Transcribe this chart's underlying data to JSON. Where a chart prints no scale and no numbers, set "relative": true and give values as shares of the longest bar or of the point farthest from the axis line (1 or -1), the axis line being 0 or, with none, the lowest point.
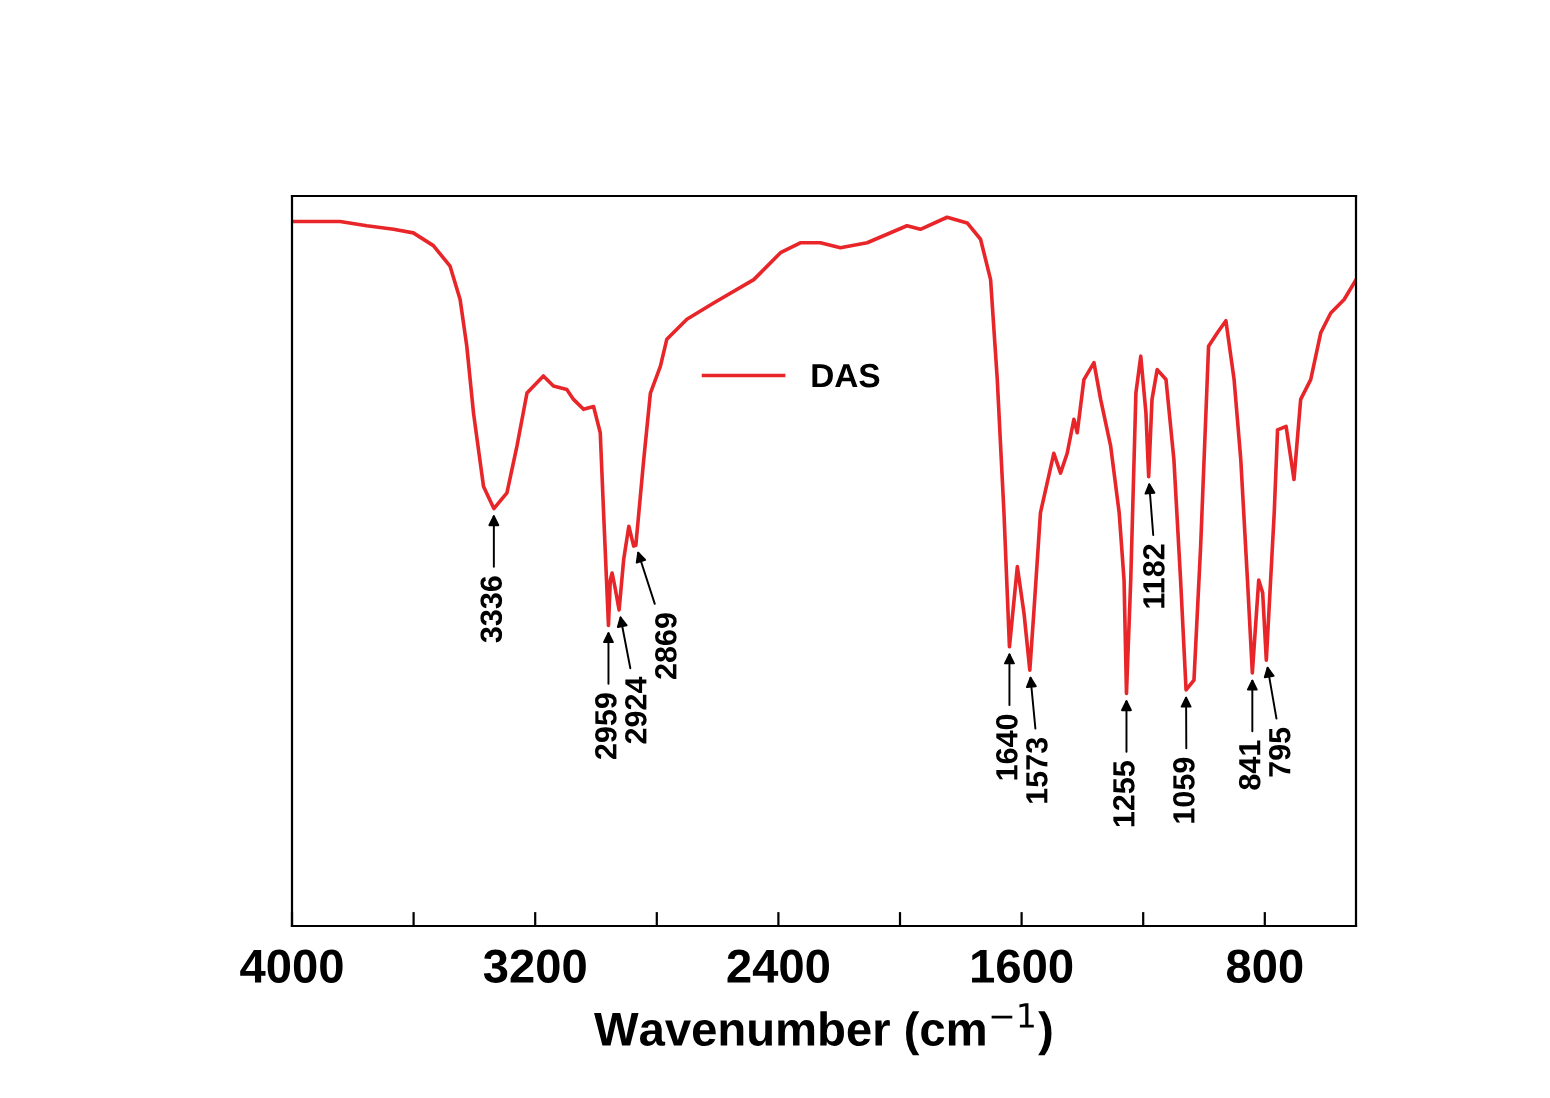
{
  "chart_data": {
    "type": "line",
    "relative": true,
    "xlabel": "Wavenumber (cm$^{−1}$)",
    "xlim": [
      4000,
      500
    ],
    "xticks": [
      4000,
      {
        "value": 3600,
        "label": null
      },
      3200,
      {
        "value": 2800,
        "label": null
      },
      2400,
      {
        "value": 2000,
        "label": null
      },
      1600,
      {
        "value": 1200,
        "label": null
      },
      800
    ],
    "tick_labels": "x",
    "grid": false,
    "legend": "top",
    "marker": "none",
    "line_style": "solid",
    "series": [
      {
        "name": "DAS",
        "color": "#e8262a",
        "x": [
          4000,
          3842,
          3754,
          3666,
          3601,
          3535,
          3480,
          3447,
          3425,
          3403,
          3370,
          3336,
          3293,
          3260,
          3227,
          3173,
          3140,
          3096,
          3074,
          3041,
          3008,
          2986,
          2975,
          2959,
          2953,
          2947,
          2938,
          2924,
          2909,
          2892,
          2876,
          2869,
          2843,
          2821,
          2788,
          2767,
          2701,
          2613,
          2481,
          2393,
          2328,
          2262,
          2196,
          2108,
          1977,
          1933,
          1845,
          1779,
          1735,
          1702,
          1680,
          1658,
          1640,
          1614,
          1592,
          1573,
          1560,
          1538,
          1494,
          1472,
          1450,
          1428,
          1417,
          1395,
          1362,
          1340,
          1307,
          1279,
          1263,
          1255,
          1241,
          1224,
          1208,
          1191,
          1182,
          1171,
          1154,
          1125,
          1099,
          1077,
          1059,
          1033,
          1011,
          985,
          956,
          928,
          901,
          879,
          857,
          841,
          820,
          807,
          795,
          769,
          758,
          730,
          704,
          682,
          649,
          616,
          583,
          539,
          500
        ],
        "values": [
          0.994,
          0.994,
          0.988,
          0.983,
          0.978,
          0.96,
          0.931,
          0.884,
          0.818,
          0.724,
          0.62,
          0.589,
          0.611,
          0.677,
          0.752,
          0.776,
          0.762,
          0.757,
          0.743,
          0.729,
          0.733,
          0.696,
          0.583,
          0.424,
          0.488,
          0.498,
          0.479,
          0.446,
          0.517,
          0.564,
          0.536,
          0.537,
          0.658,
          0.752,
          0.79,
          0.828,
          0.856,
          0.879,
          0.912,
          0.95,
          0.964,
          0.964,
          0.957,
          0.964,
          0.988,
          0.983,
          1,
          0.992,
          0.969,
          0.912,
          0.771,
          0.583,
          0.394,
          0.507,
          0.441,
          0.361,
          0.441,
          0.583,
          0.667,
          0.639,
          0.667,
          0.715,
          0.696,
          0.771,
          0.795,
          0.743,
          0.677,
          0.583,
          0.488,
          0.328,
          0.488,
          0.752,
          0.804,
          0.724,
          0.634,
          0.743,
          0.785,
          0.771,
          0.658,
          0.488,
          0.333,
          0.347,
          0.536,
          0.818,
          0.837,
          0.854,
          0.771,
          0.658,
          0.488,
          0.357,
          0.488,
          0.47,
          0.375,
          0.583,
          0.7,
          0.705,
          0.63,
          0.743,
          0.771,
          0.837,
          0.865,
          0.884,
          0.912
        ]
      }
    ],
    "annotations": [
      {
        "text": "3336",
        "x": 3336,
        "y": 0.589
      },
      {
        "text": "2959",
        "x": 2959,
        "y": 0.424
      },
      {
        "text": "2924",
        "x": 2924,
        "y": 0.446
      },
      {
        "text": "2869",
        "x": 2869,
        "y": 0.537
      },
      {
        "text": "1640",
        "x": 1640,
        "y": 0.394
      },
      {
        "text": "1573",
        "x": 1573,
        "y": 0.361
      },
      {
        "text": "1255",
        "x": 1255,
        "y": 0.328
      },
      {
        "text": "1182",
        "x": 1182,
        "y": 0.634
      },
      {
        "text": "1059",
        "x": 1059,
        "y": 0.333
      },
      {
        "text": "841",
        "x": 841,
        "y": 0.357
      },
      {
        "text": "795",
        "x": 795,
        "y": 0.375
      }
    ]
  }
}
